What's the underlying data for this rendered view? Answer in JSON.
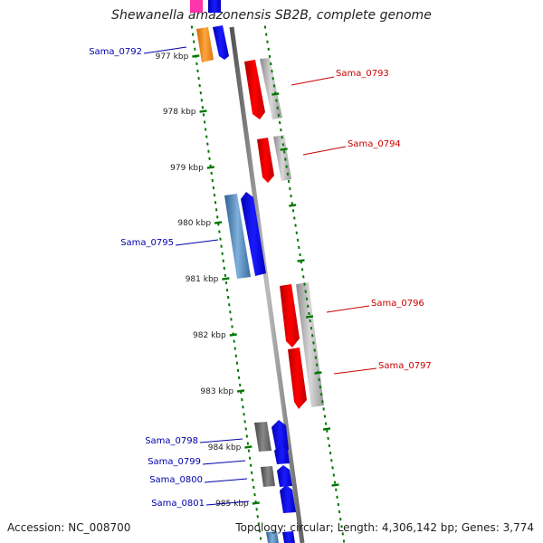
{
  "title": "Shewanella amazonensis SB2B, complete genome",
  "footer": {
    "accession": "Accession: NC_008700",
    "topology": "Topology: circular; Length: 4,306,142 bp; Genes: 3,774"
  },
  "ticks": [
    {
      "label": "977 kbp",
      "kbp": 977
    },
    {
      "label": "978 kbp",
      "kbp": 978
    },
    {
      "label": "979 kbp",
      "kbp": 979
    },
    {
      "label": "980 kbp",
      "kbp": 980
    },
    {
      "label": "981 kbp",
      "kbp": 981
    },
    {
      "label": "982 kbp",
      "kbp": 982
    },
    {
      "label": "983 kbp",
      "kbp": 983
    },
    {
      "label": "984 kbp",
      "kbp": 984
    },
    {
      "label": "985 kbp",
      "kbp": 985
    }
  ],
  "genes": [
    {
      "name": "Sama_0792",
      "strand": "-"
    },
    {
      "name": "Sama_0793",
      "strand": "+"
    },
    {
      "name": "Sama_0794",
      "strand": "+"
    },
    {
      "name": "Sama_0795",
      "strand": "-"
    },
    {
      "name": "Sama_0796",
      "strand": "+"
    },
    {
      "name": "Sama_0797",
      "strand": "+"
    },
    {
      "name": "Sama_0798",
      "strand": "-"
    },
    {
      "name": "Sama_0799",
      "strand": "-"
    },
    {
      "name": "Sama_0800",
      "strand": "-"
    },
    {
      "name": "Sama_0801",
      "strand": "-"
    }
  ],
  "colors": {
    "forward": "#ff0000",
    "reverse": "#0000ff",
    "label_forward": "#cc0000",
    "label_reverse": "#0000aa",
    "tick": "#007700",
    "backbone": "#888888"
  }
}
